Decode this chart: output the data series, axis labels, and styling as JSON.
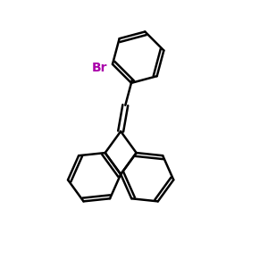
{
  "background_color": "#ffffff",
  "bond_color": "#000000",
  "br_color": "#aa00aa",
  "br_label": "Br",
  "line_width": 1.8,
  "figsize": [
    3.0,
    3.0
  ],
  "dpi": 100
}
